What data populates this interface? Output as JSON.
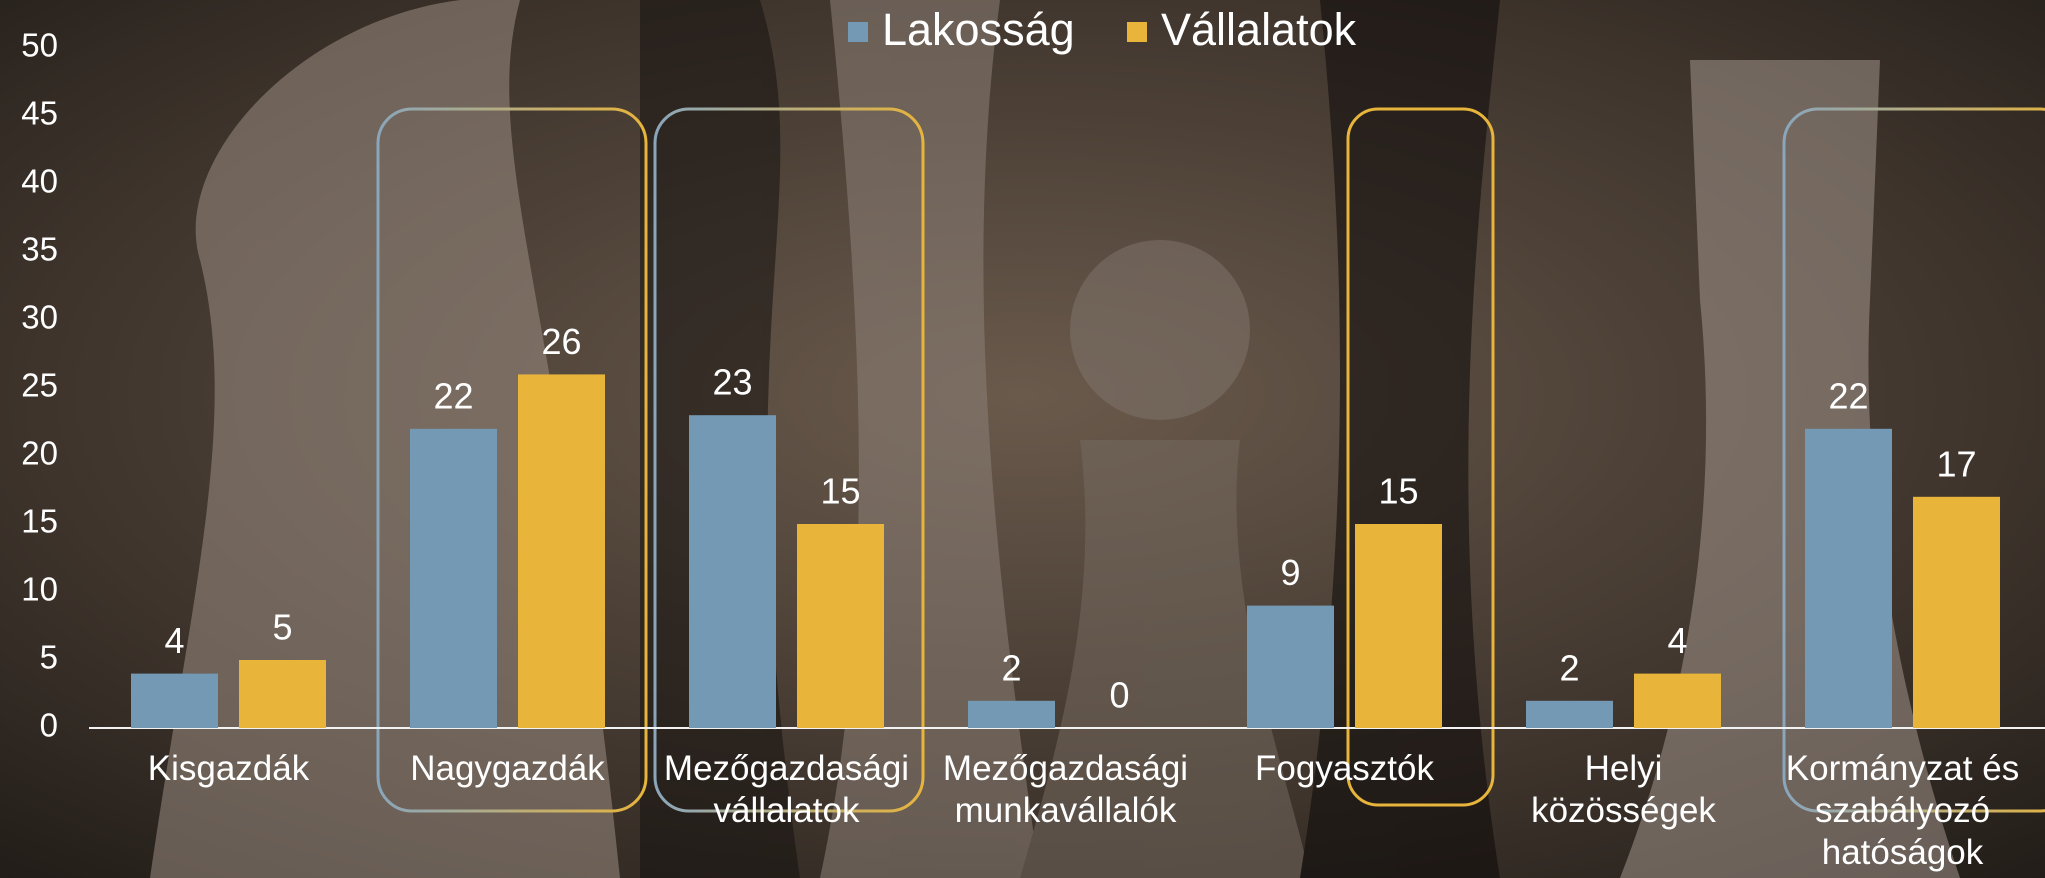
{
  "chart_data": {
    "type": "bar",
    "categories": [
      "Kisgazdák",
      "Nagygazdák",
      "Mezőgazdasági vállalatok",
      "Mezőgazdasági munkavállalók",
      "Fogyasztók",
      "Helyi közösségek",
      "Kormányzat és szabályozó hatóságok"
    ],
    "series": [
      {
        "name": "Lakosság",
        "color": "#7399b4",
        "values": [
          4,
          22,
          23,
          2,
          9,
          2,
          22
        ]
      },
      {
        "name": "Vállalatok",
        "color": "#e9b43a",
        "values": [
          5,
          26,
          15,
          0,
          15,
          4,
          17
        ]
      }
    ],
    "ylim": [
      0,
      50
    ],
    "yticks": [
      0,
      5,
      10,
      15,
      20,
      25,
      30,
      35,
      40,
      45,
      50
    ],
    "grid": false,
    "legend": "top"
  }
}
